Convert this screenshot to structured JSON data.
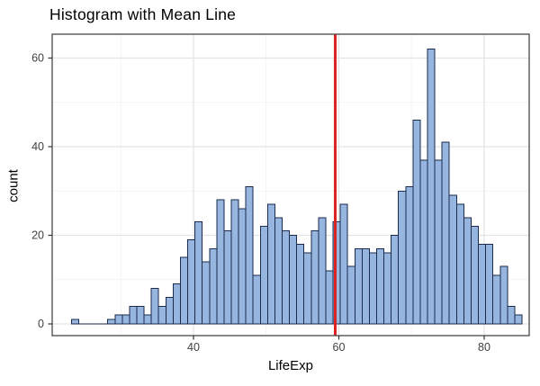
{
  "title": "Histogram with Mean Line",
  "chart_data": {
    "type": "histogram",
    "title": "Histogram with Mean Line",
    "xlabel": "LifeExp",
    "ylabel": "count",
    "x_ticks": [
      40,
      60,
      80
    ],
    "y_ticks": [
      0,
      20,
      40,
      60
    ],
    "x_minor_gridlines": [
      30,
      50,
      70
    ],
    "y_minor_gridlines": [
      10,
      30,
      50
    ],
    "xlim": [
      20.6,
      86.6
    ],
    "ylim": [
      0,
      65
    ],
    "grid": "on",
    "legend_position": "none",
    "bin_start": 23.2,
    "binwidth": 1.0,
    "counts": [
      1,
      0,
      0,
      0,
      0,
      1,
      2,
      2,
      4,
      4,
      2,
      8,
      4,
      6,
      9,
      15,
      19,
      23,
      14,
      17,
      28,
      21,
      28,
      26,
      31,
      11,
      22,
      27,
      24,
      21,
      20,
      18,
      16,
      21,
      24,
      12,
      23,
      27,
      13,
      17,
      17,
      16,
      17,
      16,
      20,
      30,
      31,
      46,
      37,
      62,
      37,
      41,
      29,
      27,
      24,
      22,
      18,
      18,
      11,
      13,
      4,
      2
    ],
    "mean_line": {
      "x": 59.5,
      "color": "#DD2222"
    },
    "colors": {
      "bar_fill": "#96B6DF",
      "bar_stroke": "#1B2B4B",
      "panel_bg": "#FFFFFF",
      "grid_major": "#E3E3E3",
      "grid_minor": "#F1F1F1",
      "panel_border": "#474747",
      "tick_mark": "#333333",
      "tick_text": "#404040"
    }
  }
}
